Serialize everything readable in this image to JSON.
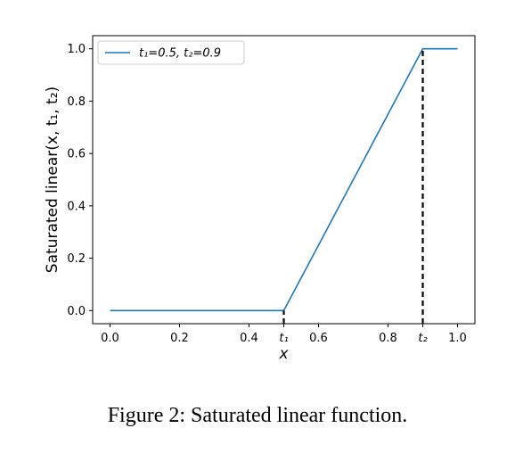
{
  "caption": "Figure 2: Saturated linear function.",
  "chart_data": {
    "type": "line",
    "xlabel": "x",
    "ylabel": "Saturated linear(x, t₁, t₂)",
    "xlim": [
      -0.05,
      1.05
    ],
    "ylim": [
      -0.05,
      1.05
    ],
    "x_ticks": [
      {
        "value": 0.0,
        "label": "0.0"
      },
      {
        "value": 0.2,
        "label": "0.2"
      },
      {
        "value": 0.4,
        "label": "0.4"
      },
      {
        "value": 0.5,
        "label": "t₁"
      },
      {
        "value": 0.6,
        "label": "0.6"
      },
      {
        "value": 0.8,
        "label": "0.8"
      },
      {
        "value": 0.9,
        "label": "t₂"
      },
      {
        "value": 1.0,
        "label": "1.0"
      }
    ],
    "y_ticks": [
      {
        "value": 0.0,
        "label": "0.0"
      },
      {
        "value": 0.2,
        "label": "0.2"
      },
      {
        "value": 0.4,
        "label": "0.4"
      },
      {
        "value": 0.6,
        "label": "0.6"
      },
      {
        "value": 0.8,
        "label": "0.8"
      },
      {
        "value": 1.0,
        "label": "1.0"
      }
    ],
    "grid": false,
    "legend": "top-left",
    "series": [
      {
        "name": "t₁=0.5, t₂=0.9",
        "color": "#1f77b4",
        "x": [
          0.0,
          0.5,
          0.9,
          1.0
        ],
        "y": [
          0.0,
          0.0,
          1.0,
          1.0
        ]
      }
    ],
    "vlines": [
      {
        "x": 0.5,
        "y_from": 0.0,
        "y_to": 0.0,
        "style": "dashed",
        "color": "#000000"
      },
      {
        "x": 0.9,
        "y_from": 0.0,
        "y_to": 1.0,
        "style": "dashed",
        "color": "#000000"
      }
    ]
  }
}
